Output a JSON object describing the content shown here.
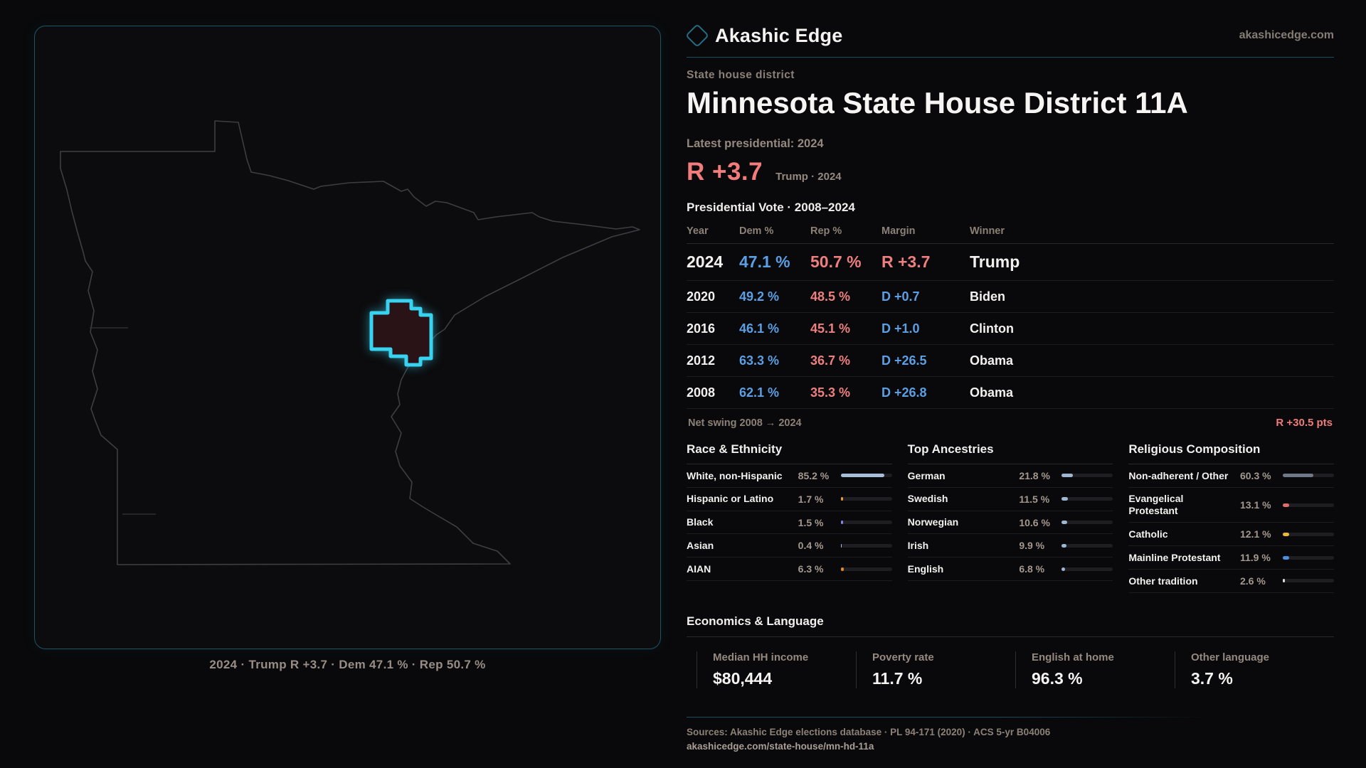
{
  "brand": {
    "name": "Akashic Edge",
    "site": "akashicedge.com"
  },
  "page": {
    "eyebrow": "State house district",
    "title": "Minnesota State House District 11A",
    "latest_label": "Latest presidential: 2024",
    "headline_margin": "R +3.7",
    "headline_context": "Trump · 2024",
    "table_title": "Presidential Vote · 2008–2024",
    "net_swing_label": "Net swing 2008 → 2024",
    "net_swing_value": "R +30.5 pts"
  },
  "map": {
    "caption": "2024 · Trump R +3.7 · Dem 47.1 % · Rep 50.7 %",
    "district_accent": "#38d3f1",
    "outline_color": "#3d3e44"
  },
  "colors": {
    "dem": "#5b9fe4",
    "rep": "#ee7f7f"
  },
  "vote_table": {
    "headers": [
      "Year",
      "Dem %",
      "Rep %",
      "Margin",
      "Winner"
    ],
    "rows": [
      {
        "year": "2024",
        "dem": "47.1 %",
        "rep": "50.7 %",
        "margin": "R +3.7",
        "margin_party": "R",
        "winner": "Trump",
        "highlight": true
      },
      {
        "year": "2020",
        "dem": "49.2 %",
        "rep": "48.5 %",
        "margin": "D +0.7",
        "margin_party": "D",
        "winner": "Biden",
        "highlight": false
      },
      {
        "year": "2016",
        "dem": "46.1 %",
        "rep": "45.1 %",
        "margin": "D +1.0",
        "margin_party": "D",
        "winner": "Clinton",
        "highlight": false
      },
      {
        "year": "2012",
        "dem": "63.3 %",
        "rep": "36.7 %",
        "margin": "D +26.5",
        "margin_party": "D",
        "winner": "Obama",
        "highlight": false
      },
      {
        "year": "2008",
        "dem": "62.1 %",
        "rep": "35.3 %",
        "margin": "D +26.8",
        "margin_party": "D",
        "winner": "Obama",
        "highlight": false
      }
    ]
  },
  "chart_data": [
    {
      "type": "bar",
      "title": "Race & Ethnicity",
      "categories": [
        "White, non-Hispanic",
        "Hispanic or Latino",
        "Black",
        "Asian",
        "AIAN"
      ],
      "values": [
        85.2,
        1.7,
        1.5,
        0.4,
        6.3
      ],
      "value_labels": [
        "85.2 %",
        "1.7 %",
        "1.5 %",
        "0.4 %",
        "6.3 %"
      ],
      "bar_colors": [
        "#a9bed8",
        "#e79a3c",
        "#8785e8",
        "#a9bed8",
        "#e08a2e"
      ],
      "xlim": [
        0,
        100
      ]
    },
    {
      "type": "bar",
      "title": "Top Ancestries",
      "categories": [
        "German",
        "Swedish",
        "Norwegian",
        "Irish",
        "English"
      ],
      "values": [
        21.8,
        11.5,
        10.6,
        9.9,
        6.8
      ],
      "value_labels": [
        "21.8 %",
        "11.5 %",
        "10.6 %",
        "9.9 %",
        "6.8 %"
      ],
      "bar_colors": [
        "#9fb6d0",
        "#9fb6d0",
        "#9fb6d0",
        "#9fb6d0",
        "#9fb6d0"
      ],
      "xlim": [
        0,
        100
      ]
    },
    {
      "type": "bar",
      "title": "Religious Composition",
      "categories": [
        "Non-adherent / Other",
        "Evangelical Protestant",
        "Catholic",
        "Mainline Protestant",
        "Other tradition"
      ],
      "values": [
        60.3,
        13.1,
        12.1,
        11.9,
        2.6
      ],
      "value_labels": [
        "60.3 %",
        "13.1 %",
        "12.1 %",
        "11.9 %",
        "2.6 %"
      ],
      "bar_colors": [
        "#6e7887",
        "#e06c6c",
        "#e8b83a",
        "#4a90e0",
        "#d8d8d8"
      ],
      "xlim": [
        0,
        100
      ]
    }
  ],
  "economics": {
    "title": "Economics & Language",
    "stats": [
      {
        "label": "Median HH income",
        "value": "$80,444"
      },
      {
        "label": "Poverty rate",
        "value": "11.7 %"
      },
      {
        "label": "English at home",
        "value": "96.3 %"
      },
      {
        "label": "Other language",
        "value": "3.7 %"
      }
    ]
  },
  "footer": {
    "sources": "Sources: Akashic Edge elections database · PL 94-171 (2020) · ACS 5-yr B04006",
    "url": "akashicedge.com/state-house/mn-hd-11a"
  }
}
